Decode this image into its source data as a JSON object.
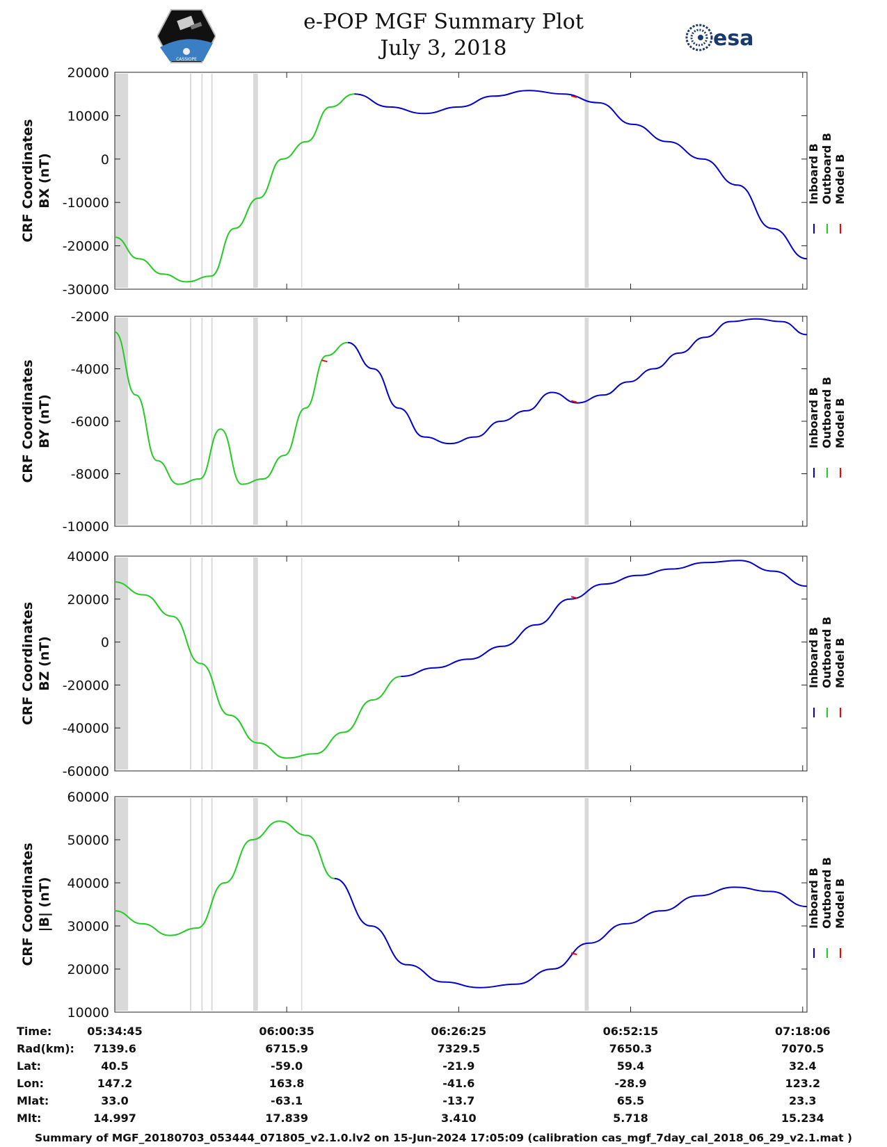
{
  "header": {
    "title_line1": "e-POP MGF Summary Plot",
    "title_line2": "July 3, 2018",
    "left_logo": "satellite-mission-logo",
    "left_logo_caption": "CASSIOPE",
    "right_logo_text": "esa"
  },
  "legend": {
    "labels": [
      "Inboard B",
      "Outboard B",
      "Model B"
    ],
    "colors": [
      "#0000cc",
      "#22cc22",
      "#ff0000"
    ]
  },
  "chart_data": [
    {
      "type": "line",
      "ylabel_line1": "CRF Coordinates",
      "ylabel_line2": "BX (nT)",
      "ylim": [
        -30000,
        20000
      ],
      "yticks": [
        -30000,
        -20000,
        -10000,
        0,
        10000,
        20000
      ],
      "x_minutes": [
        0,
        3,
        10,
        18,
        23,
        30,
        33,
        36,
        40,
        45,
        50,
        55,
        60,
        65,
        70,
        75,
        80,
        85,
        90,
        95,
        98,
        104
      ],
      "series": [
        {
          "name": "Outboard B",
          "color": "#22cc22",
          "x_range": [
            0,
            36
          ],
          "values": [
            -18000,
            -23000,
            -26500,
            -28300,
            -27000,
            -16000,
            -9000,
            0,
            4000,
            12000,
            15000
          ]
        },
        {
          "name": "Inboard B",
          "color": "#0000cc",
          "x_range": [
            36,
            104
          ],
          "values": [
            15000,
            12000,
            10500,
            12000,
            14500,
            15800,
            15000,
            13000,
            8000,
            4000,
            0,
            -6000,
            -16000,
            -23000
          ]
        }
      ],
      "model_marks_x": [
        69
      ]
    },
    {
      "type": "line",
      "ylabel_line1": "CRF Coordinates",
      "ylabel_line2": "BY (nT)",
      "ylim": [
        -10000,
        -2000
      ],
      "yticks": [
        -10000,
        -8000,
        -6000,
        -4000,
        -2000
      ],
      "series": [
        {
          "name": "Outboard B",
          "color": "#22cc22",
          "values": [
            -2600,
            -5000,
            -7500,
            -8400,
            -8200,
            -6300,
            -8400,
            -8200,
            -7300,
            -5500,
            -3500,
            -3000
          ]
        },
        {
          "name": "Inboard B",
          "color": "#0000cc",
          "values": [
            -3000,
            -4000,
            -5500,
            -6600,
            -6850,
            -6600,
            -6000,
            -5600,
            -4900,
            -5300,
            -5000,
            -4500,
            -4000,
            -3400,
            -2800,
            -2200,
            -2100,
            -2200,
            -2700
          ]
        }
      ],
      "model_marks_x": [
        31.5,
        69
      ]
    },
    {
      "type": "line",
      "ylabel_line1": "CRF Coordinates",
      "ylabel_line2": "BZ (nT)",
      "ylim": [
        -60000,
        40000
      ],
      "yticks": [
        -60000,
        -40000,
        -20000,
        0,
        20000,
        40000
      ],
      "series": [
        {
          "name": "Outboard B",
          "color": "#22cc22",
          "values": [
            28000,
            22000,
            12000,
            -10000,
            -34000,
            -47000,
            -54000,
            -52000,
            -42000,
            -27000,
            -16000
          ]
        },
        {
          "name": "Inboard B",
          "color": "#0000cc",
          "values": [
            -16000,
            -12000,
            -8000,
            -2000,
            8000,
            20000,
            27000,
            31000,
            34000,
            37000,
            38000,
            33000,
            26000
          ]
        }
      ],
      "model_marks_x": [
        69
      ]
    },
    {
      "type": "line",
      "ylabel_line1": "CRF Coordinates",
      "ylabel_line2": "|B| (nT)",
      "ylim": [
        10000,
        60000
      ],
      "yticks": [
        10000,
        20000,
        30000,
        40000,
        50000,
        60000
      ],
      "series": [
        {
          "name": "Outboard B",
          "color": "#22cc22",
          "values": [
            33500,
            30500,
            27800,
            29500,
            40000,
            50000,
            54300,
            51000,
            41000
          ]
        },
        {
          "name": "Inboard B",
          "color": "#0000cc",
          "values": [
            41000,
            30000,
            21000,
            17000,
            15700,
            16500,
            20000,
            26000,
            30500,
            33500,
            37000,
            39000,
            38000,
            34500
          ]
        }
      ],
      "model_marks_x": [
        69
      ]
    }
  ],
  "x_axis": {
    "tick_labels": [
      "05:34:45",
      "06:00:35",
      "06:26:25",
      "06:52:15",
      "07:18:06"
    ],
    "tick_minutes": [
      0,
      25.83,
      51.67,
      77.5,
      103.35
    ]
  },
  "ephemeris": {
    "rows": [
      {
        "label": "Time:",
        "values": [
          "05:34:45",
          "06:00:35",
          "06:26:25",
          "06:52:15",
          "07:18:06"
        ]
      },
      {
        "label": "Rad(km):",
        "values": [
          "7139.6",
          "6715.9",
          "7329.5",
          "7650.3",
          "7070.5"
        ]
      },
      {
        "label": "Lat:",
        "values": [
          "40.5",
          "-59.0",
          "-21.9",
          "59.4",
          "32.4"
        ]
      },
      {
        "label": "Lon:",
        "values": [
          "147.2",
          "163.8",
          "-41.6",
          "-28.9",
          "123.2"
        ]
      },
      {
        "label": "Mlat:",
        "values": [
          "33.0",
          "-63.1",
          "-13.7",
          "65.5",
          "23.3"
        ]
      },
      {
        "label": "Mlt:",
        "values": [
          "14.997",
          "17.839",
          "3.410",
          "5.718",
          "15.234"
        ]
      }
    ]
  },
  "footer": "Summary of MGF_20180703_053444_071805_v2.1.0.lv2 on 15-Jun-2024 17:05:09 (calibration cas_mgf_7day_cal_2018_06_29_v2.1.mat )",
  "gaps_minutes": [
    [
      0,
      2
    ],
    [
      11.3,
      11.5
    ],
    [
      13,
      13.2
    ],
    [
      14.5,
      14.7
    ],
    [
      20.8,
      21.5
    ],
    [
      28,
      28.15
    ],
    [
      70.6,
      71.2
    ]
  ]
}
